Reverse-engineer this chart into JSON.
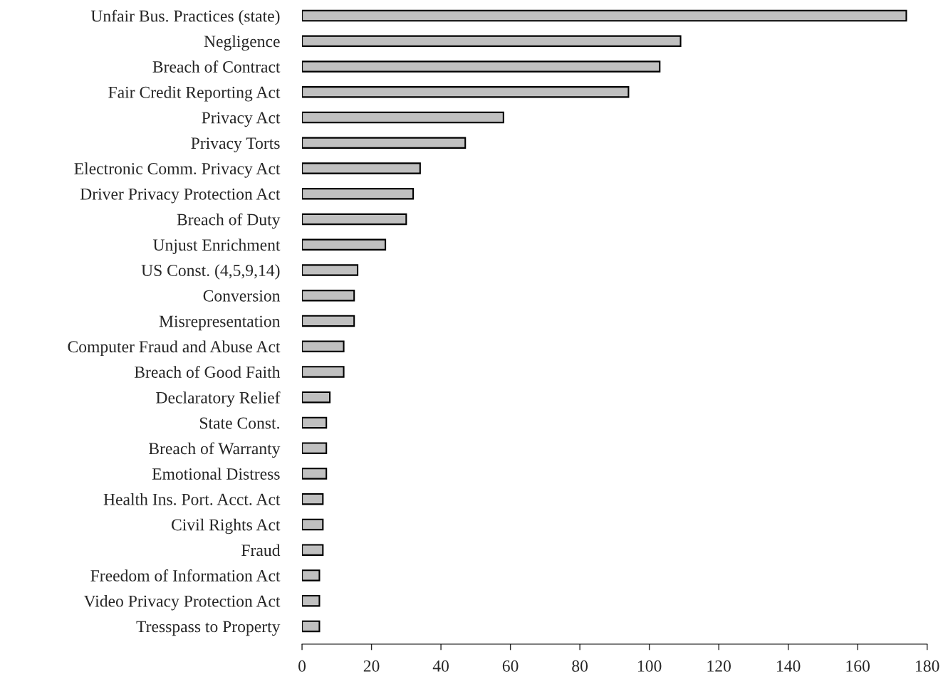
{
  "chart_data": {
    "type": "bar",
    "orientation": "horizontal",
    "categories": [
      "Unfair Bus. Practices (state)",
      "Negligence",
      "Breach of Contract",
      "Fair Credit Reporting Act",
      "Privacy Act",
      "Privacy Torts",
      "Electronic Comm. Privacy Act",
      "Driver Privacy Protection Act",
      "Breach of Duty",
      "Unjust Enrichment",
      "US Const. (4,5,9,14)",
      "Conversion",
      "Misrepresentation",
      "Computer Fraud and Abuse Act",
      "Breach of Good Faith",
      "Declaratory Relief",
      "State Const.",
      "Breach of Warranty",
      "Emotional Distress",
      "Health Ins. Port. Acct. Act",
      "Civil Rights Act",
      "Fraud",
      "Freedom of Information Act",
      "Video Privacy Protection Act",
      "Tresspass to Property"
    ],
    "values": [
      174,
      109,
      103,
      94,
      58,
      47,
      34,
      32,
      30,
      24,
      16,
      15,
      15,
      12,
      12,
      8,
      7,
      7,
      7,
      6,
      6,
      6,
      5,
      5,
      5
    ],
    "color": "#c0c0c0",
    "xlim": [
      0,
      180
    ],
    "xticks": [
      0,
      20,
      40,
      60,
      80,
      100,
      120,
      140,
      160,
      180
    ],
    "grid": false,
    "legend": false
  }
}
